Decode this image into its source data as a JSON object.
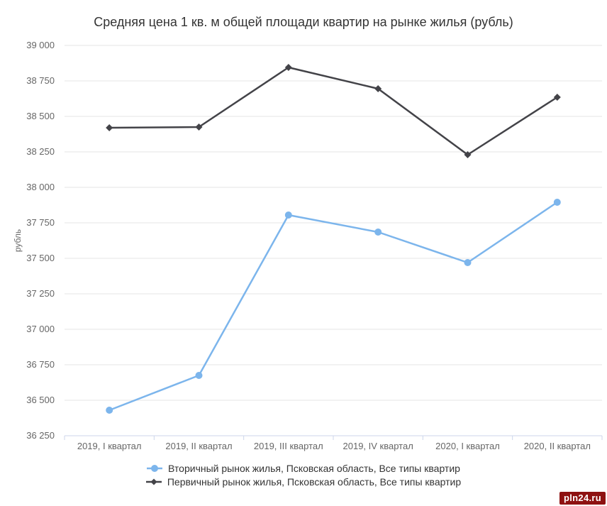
{
  "title": "Средняя цена 1 кв. м общей площади квартир на рынке жилья (рубль)",
  "watermark": "pln24.ru",
  "chart_data": {
    "type": "line",
    "title": "Средняя цена 1 кв. м общей площади квартир на рынке жилья (рубль)",
    "xlabel": "",
    "ylabel": "рубль",
    "categories": [
      "2019, I квартал",
      "2019, II квартал",
      "2019, III квартал",
      "2019, IV квартал",
      "2020, I квартал",
      "2020, II квартал"
    ],
    "series": [
      {
        "name": "Вторичный рынок жилья, Псковская область, Все типы квартир",
        "color": "#7cb5ec",
        "marker": "circle",
        "values": [
          36430,
          36675,
          37805,
          37685,
          37470,
          37895
        ]
      },
      {
        "name": "Первичный рынок жилья, Псковская область, Все типы квартир",
        "color": "#434348",
        "marker": "diamond",
        "values": [
          38420,
          38425,
          38845,
          38695,
          38230,
          38635
        ]
      }
    ],
    "ylim": [
      36250,
      39000
    ],
    "ytick_step": 250,
    "ytick_labels": [
      "36 250",
      "36 500",
      "36 750",
      "37 000",
      "37 250",
      "37 500",
      "37 750",
      "38 000",
      "38 250",
      "38 500",
      "38 750",
      "39 000"
    ],
    "grid": true,
    "legend_position": "bottom",
    "colors": {
      "grid": "#e6e6e6",
      "axis": "#ccd6eb",
      "tick_label": "#666666",
      "title": "#333333",
      "badge_bg": "#8e1111",
      "badge_text": "#ffffff"
    }
  }
}
